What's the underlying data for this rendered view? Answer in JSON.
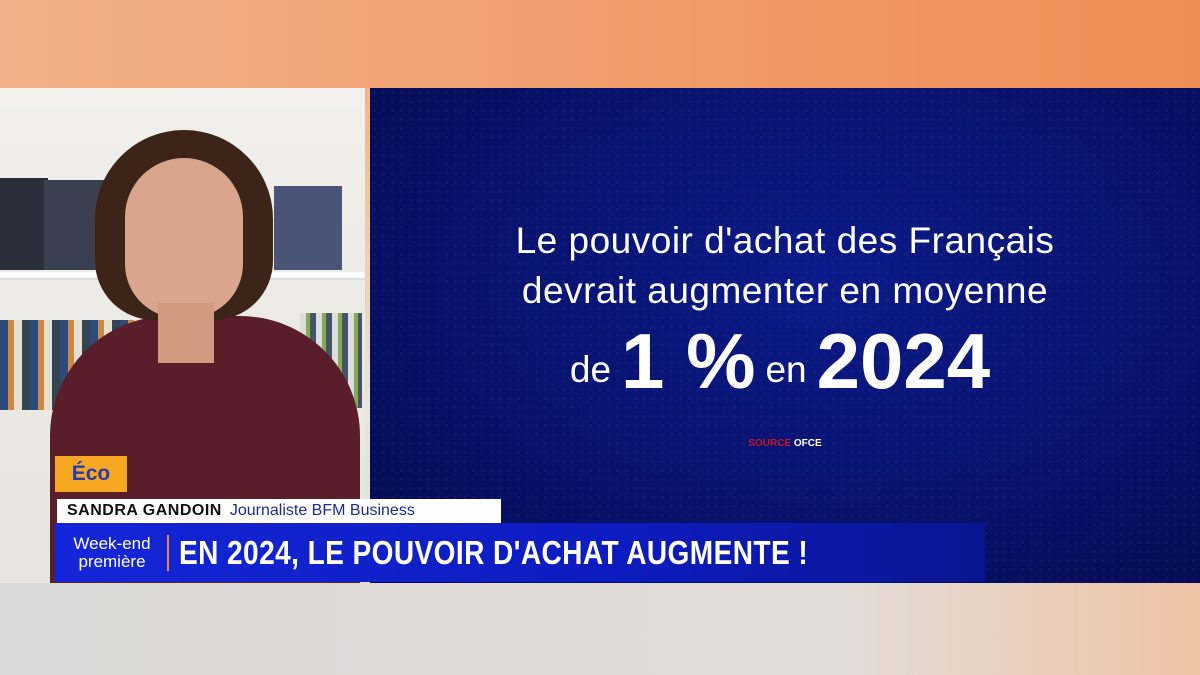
{
  "video": {
    "subject": "presenter"
  },
  "graphic": {
    "line1": "Le pouvoir d'achat des Français",
    "line2": "devrait augmenter en moyenne",
    "prefix": "de",
    "value": "1 %",
    "middle": "en",
    "year": "2024",
    "source_label": "SOURCE",
    "source_value": "OFCE"
  },
  "lower_third": {
    "category": "Éco",
    "name": "SANDRA GANDOIN",
    "role": "Journaliste BFM Business",
    "show_line1": "Week-end",
    "show_line2": "première",
    "headline": "EN 2024, LE POUVOIR D'ACHAT AUGMENTE !"
  },
  "colors": {
    "panel": "#08136e",
    "banner": "#1426d8",
    "category": "#f7a823",
    "source": "#c0182a"
  }
}
